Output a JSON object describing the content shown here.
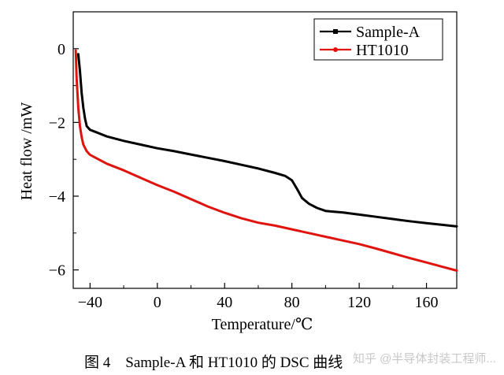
{
  "chart_data": {
    "type": "line",
    "xlabel": "Temperature/℃",
    "ylabel": "Heat flow /mW",
    "xlim": [
      -50,
      178
    ],
    "ylim": [
      -6.5,
      1
    ],
    "x_ticks": [
      -40,
      0,
      40,
      80,
      120,
      160
    ],
    "y_ticks": [
      0,
      -2,
      -4,
      -6
    ],
    "x_tick_labels": [
      "−40",
      "0",
      "40",
      "80",
      "120",
      "160"
    ],
    "y_tick_labels": [
      "0",
      "−2",
      "−4",
      "−6"
    ],
    "legend_position": "top-right",
    "series": [
      {
        "name": "Sample-A",
        "color": "#000000",
        "x": [
          -47,
          -46,
          -45,
          -44,
          -43,
          -42,
          -40,
          -30,
          -20,
          -10,
          0,
          10,
          20,
          30,
          40,
          50,
          60,
          70,
          76,
          80,
          83,
          86,
          90,
          95,
          100,
          105,
          110,
          120,
          130,
          140,
          150,
          160,
          170,
          178
        ],
        "y": [
          -0.15,
          -0.6,
          -1.2,
          -1.6,
          -1.9,
          -2.1,
          -2.2,
          -2.38,
          -2.5,
          -2.6,
          -2.7,
          -2.78,
          -2.87,
          -2.96,
          -3.05,
          -3.15,
          -3.25,
          -3.37,
          -3.45,
          -3.57,
          -3.8,
          -4.05,
          -4.2,
          -4.32,
          -4.4,
          -4.42,
          -4.44,
          -4.5,
          -4.56,
          -4.62,
          -4.68,
          -4.73,
          -4.78,
          -4.82
        ]
      },
      {
        "name": "HT1010",
        "color": "#e0140f",
        "x": [
          -48.5,
          -48,
          -47,
          -46,
          -45,
          -44,
          -42,
          -40,
          -35,
          -30,
          -20,
          -10,
          0,
          10,
          20,
          30,
          40,
          50,
          60,
          70,
          80,
          90,
          100,
          110,
          120,
          130,
          140,
          150,
          160,
          170,
          178
        ],
        "y": [
          -0.05,
          -0.8,
          -1.6,
          -2.1,
          -2.4,
          -2.6,
          -2.78,
          -2.88,
          -3.0,
          -3.12,
          -3.3,
          -3.5,
          -3.7,
          -3.88,
          -4.08,
          -4.28,
          -4.45,
          -4.6,
          -4.72,
          -4.8,
          -4.9,
          -5.0,
          -5.1,
          -5.2,
          -5.3,
          -5.42,
          -5.55,
          -5.68,
          -5.8,
          -5.92,
          -6.02
        ]
      }
    ]
  },
  "caption": "图 4　Sample-A 和 HT1010 的 DSC 曲线",
  "watermark": "知乎 @半导体封装工程师..."
}
